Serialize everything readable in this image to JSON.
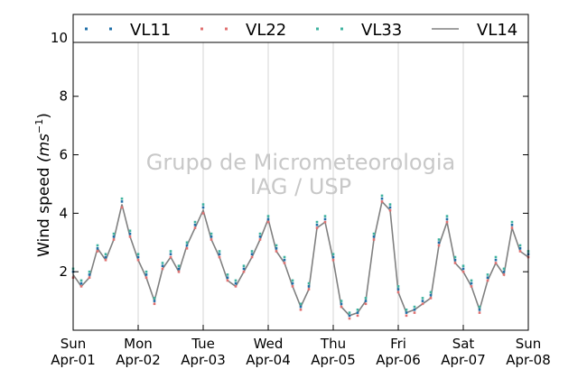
{
  "chart_data": {
    "type": "line",
    "title": "",
    "ylabel": "Wind speed (m s⁻¹)",
    "ylabel_parts": {
      "main": "Wind speed ",
      "unit": "(ms",
      "exp": "−1",
      "close": ")"
    },
    "xlabel": "",
    "ylim": [
      0,
      10.8
    ],
    "yticks": [
      2,
      4,
      6,
      8,
      10
    ],
    "xlim": [
      "2012-04-01",
      "2012-04-08"
    ],
    "xticks": [
      {
        "day": "Sun",
        "date": "Apr-01"
      },
      {
        "day": "Mon",
        "date": "Apr-02"
      },
      {
        "day": "Tue",
        "date": "Apr-03"
      },
      {
        "day": "Wed",
        "date": "Apr-04"
      },
      {
        "day": "Thu",
        "date": "Apr-05"
      },
      {
        "day": "Fri",
        "date": "Apr-06"
      },
      {
        "day": "Sat",
        "date": "Apr-07"
      },
      {
        "day": "Sun",
        "date": "Apr-08"
      }
    ],
    "grid": "vertical",
    "legend_position": "top",
    "x": [
      "Apr-01 00:00",
      "Apr-01 03:00",
      "Apr-01 06:00",
      "Apr-01 09:00",
      "Apr-01 12:00",
      "Apr-01 15:00",
      "Apr-01 18:00",
      "Apr-01 21:00",
      "Apr-02 00:00",
      "Apr-02 03:00",
      "Apr-02 06:00",
      "Apr-02 09:00",
      "Apr-02 12:00",
      "Apr-02 15:00",
      "Apr-02 18:00",
      "Apr-02 21:00",
      "Apr-03 00:00",
      "Apr-03 03:00",
      "Apr-03 06:00",
      "Apr-03 09:00",
      "Apr-03 12:00",
      "Apr-03 15:00",
      "Apr-03 18:00",
      "Apr-03 21:00",
      "Apr-04 00:00",
      "Apr-04 03:00",
      "Apr-04 06:00",
      "Apr-04 09:00",
      "Apr-04 12:00",
      "Apr-04 15:00",
      "Apr-04 18:00",
      "Apr-04 21:00",
      "Apr-05 00:00",
      "Apr-05 03:00",
      "Apr-05 06:00",
      "Apr-05 09:00",
      "Apr-05 12:00",
      "Apr-05 15:00",
      "Apr-05 18:00",
      "Apr-05 21:00",
      "Apr-06 00:00",
      "Apr-06 03:00",
      "Apr-06 06:00",
      "Apr-06 09:00",
      "Apr-06 12:00",
      "Apr-06 15:00",
      "Apr-06 18:00",
      "Apr-06 21:00",
      "Apr-07 00:00",
      "Apr-07 03:00",
      "Apr-07 06:00",
      "Apr-07 09:00",
      "Apr-07 12:00",
      "Apr-07 15:00",
      "Apr-07 18:00",
      "Apr-07 21:00",
      "Apr-08 00:00"
    ],
    "series": [
      {
        "name": "VL11",
        "style": "dots",
        "color": "#1f6fa8",
        "values": [
          2.0,
          1.6,
          1.9,
          2.8,
          2.5,
          3.2,
          4.4,
          3.3,
          2.5,
          1.9,
          1.0,
          2.2,
          2.6,
          2.1,
          2.9,
          3.6,
          4.2,
          3.2,
          2.6,
          1.8,
          1.6,
          2.1,
          2.6,
          3.2,
          3.8,
          2.8,
          2.4,
          1.6,
          0.8,
          1.5,
          3.6,
          3.8,
          2.5,
          0.9,
          0.5,
          0.6,
          1.0,
          3.2,
          4.5,
          4.2,
          1.4,
          0.6,
          0.7,
          1.0,
          1.2,
          3.0,
          3.8,
          2.4,
          2.1,
          1.6,
          0.7,
          1.8,
          2.4,
          2.0,
          3.6,
          2.8,
          2.6
        ]
      },
      {
        "name": "VL22",
        "style": "dots",
        "color": "#e07070",
        "values": [
          1.8,
          1.5,
          1.8,
          2.7,
          2.4,
          3.1,
          4.2,
          3.2,
          2.4,
          1.8,
          0.9,
          2.1,
          2.5,
          2.0,
          2.8,
          3.5,
          4.0,
          3.1,
          2.5,
          1.7,
          1.5,
          2.0,
          2.5,
          3.1,
          3.7,
          2.7,
          2.3,
          1.5,
          0.7,
          1.4,
          3.5,
          3.7,
          2.4,
          0.8,
          0.4,
          0.5,
          0.9,
          3.1,
          4.4,
          4.1,
          1.3,
          0.5,
          0.6,
          0.9,
          1.1,
          2.9,
          3.7,
          2.3,
          2.0,
          1.5,
          0.6,
          1.7,
          2.3,
          1.9,
          3.5,
          2.7,
          2.5
        ]
      },
      {
        "name": "VL33",
        "style": "dots",
        "color": "#3fb3a0",
        "values": [
          2.1,
          1.7,
          2.0,
          2.9,
          2.6,
          3.3,
          4.5,
          3.4,
          2.6,
          2.0,
          1.1,
          2.3,
          2.7,
          2.2,
          3.0,
          3.7,
          4.3,
          3.3,
          2.7,
          1.9,
          1.7,
          2.2,
          2.7,
          3.3,
          3.9,
          2.9,
          2.5,
          1.7,
          0.9,
          1.6,
          3.7,
          3.9,
          2.6,
          1.0,
          0.6,
          0.7,
          1.1,
          3.3,
          4.6,
          4.3,
          1.5,
          0.7,
          0.8,
          1.1,
          1.3,
          3.1,
          3.9,
          2.5,
          2.2,
          1.7,
          0.8,
          1.9,
          2.5,
          2.1,
          3.7,
          2.9,
          2.7
        ]
      },
      {
        "name": "VL14",
        "style": "line",
        "color": "#808080",
        "values": [
          1.9,
          1.5,
          1.8,
          2.8,
          2.4,
          3.1,
          4.3,
          3.2,
          2.4,
          1.8,
          1.0,
          2.1,
          2.5,
          2.0,
          2.9,
          3.5,
          4.1,
          3.1,
          2.5,
          1.7,
          1.5,
          2.0,
          2.5,
          3.1,
          3.8,
          2.7,
          2.3,
          1.5,
          0.8,
          1.4,
          3.5,
          3.7,
          2.4,
          0.8,
          0.5,
          0.6,
          1.0,
          3.1,
          4.4,
          4.1,
          1.3,
          0.6,
          0.7,
          0.9,
          1.1,
          2.9,
          3.7,
          2.3,
          2.0,
          1.5,
          0.7,
          1.7,
          2.3,
          1.9,
          3.5,
          2.7,
          2.5
        ]
      }
    ]
  },
  "watermark": {
    "line1": "Grupo de Micrometeorologia",
    "line2": "IAG / USP"
  }
}
